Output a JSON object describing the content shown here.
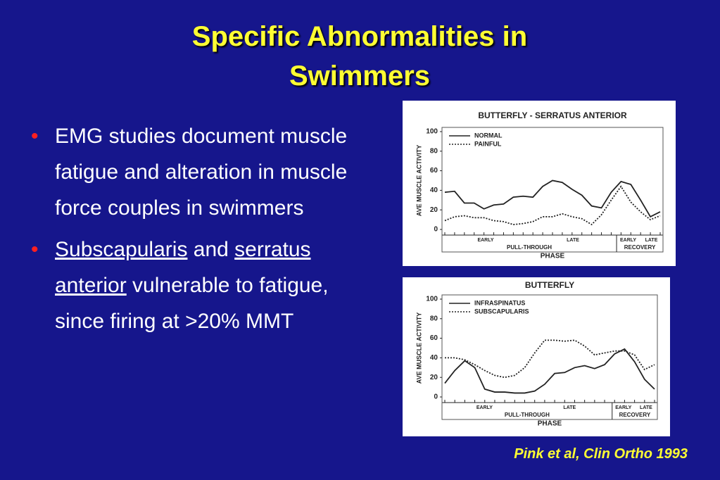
{
  "title": "Specific Abnormalities in Swimmers",
  "bullets": [
    [
      {
        "text": "EMG studies document muscle fatigue and alteration in muscle force couples in swimmers",
        "underline": false
      }
    ],
    [
      {
        "text": "Subscapularis",
        "underline": true
      },
      {
        "text": " and ",
        "underline": false
      },
      {
        "text": "serratus anterior",
        "underline": true
      },
      {
        "text": " vulnerable to fatigue, since firing at >20% MMT",
        "underline": false
      }
    ]
  ],
  "citation": "Pink et al, Clin Ortho 1993",
  "chart_data": [
    {
      "type": "line",
      "title": "BUTTERFLY - SERRATUS ANTERIOR",
      "y_label": "AVE MUSCLE ACTIVITY",
      "x_label": "PHASE",
      "ylim": [
        0,
        100
      ],
      "yticks": [
        0,
        20,
        40,
        60,
        80,
        100
      ],
      "categories": [
        null,
        null,
        null,
        null,
        null,
        null,
        null,
        null,
        null,
        null,
        null,
        null,
        null,
        null,
        null,
        null,
        null,
        null,
        null,
        null,
        null,
        null,
        null
      ],
      "phases": [
        {
          "label": "PULL-THROUGH",
          "parts": [
            "EARLY",
            "LATE"
          ]
        },
        {
          "label": "RECOVERY",
          "parts": [
            "EARLY",
            "LATE"
          ]
        }
      ],
      "series": [
        {
          "name": "NORMAL",
          "color": "#222222",
          "dashed": false,
          "values": [
            38,
            39,
            27,
            27,
            21,
            25,
            26,
            33,
            34,
            33,
            44,
            50,
            48,
            41,
            35,
            24,
            22,
            38,
            49,
            46,
            30,
            13,
            18
          ]
        },
        {
          "name": "PAINFUL",
          "color": "#222222",
          "dashed": true,
          "values": [
            9,
            13,
            14,
            12,
            12,
            9,
            8,
            5,
            6,
            8,
            13,
            13,
            16,
            13,
            11,
            5,
            15,
            30,
            44,
            28,
            18,
            10,
            14
          ]
        }
      ]
    },
    {
      "type": "line",
      "title": "BUTTERFLY",
      "y_label": "AVE MUSCLE ACTIVITY",
      "x_label": "PHASE",
      "ylim": [
        0,
        100
      ],
      "yticks": [
        0,
        20,
        40,
        60,
        80,
        100
      ],
      "categories": [
        null,
        null,
        null,
        null,
        null,
        null,
        null,
        null,
        null,
        null,
        null,
        null,
        null,
        null,
        null,
        null,
        null,
        null,
        null,
        null,
        null,
        null
      ],
      "phases": [
        {
          "label": "PULL-THROUGH",
          "parts": [
            "EARLY",
            "LATE"
          ]
        },
        {
          "label": "RECOVERY",
          "parts": [
            "EARLY",
            "LATE"
          ]
        }
      ],
      "series": [
        {
          "name": "INFRASPINATUS",
          "color": "#222222",
          "dashed": false,
          "values": [
            14,
            27,
            37,
            30,
            8,
            5,
            5,
            4,
            4,
            6,
            13,
            24,
            25,
            30,
            32,
            29,
            33,
            44,
            49,
            36,
            18,
            8
          ]
        },
        {
          "name": "SUBSCAPULARIS",
          "color": "#222222",
          "dashed": true,
          "values": [
            40,
            40,
            38,
            33,
            27,
            22,
            20,
            22,
            30,
            45,
            58,
            58,
            57,
            58,
            52,
            43,
            45,
            47,
            47,
            43,
            28,
            33
          ]
        }
      ]
    }
  ]
}
